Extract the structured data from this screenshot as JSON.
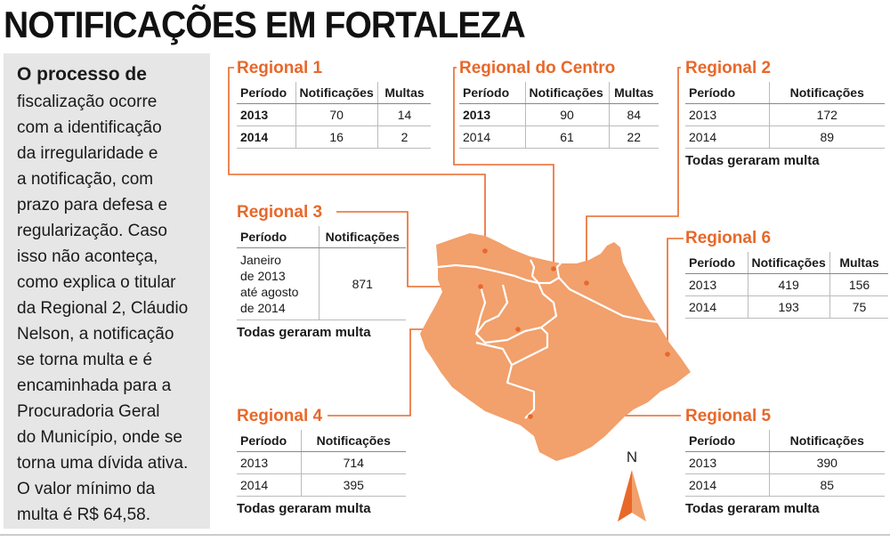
{
  "title": "NOTIFICAÇÕES EM FORTALEZA",
  "sidebar": {
    "lead": "O processo de",
    "body": "fiscalização ocorre\ncom a identificação\nda irregularidade e\na notificação, com\nprazo para defesa e\nregularização. Caso\nisso não aconteça,\ncomo explica o titular\nda Regional 2, Cláudio\nNelson, a notificação\nse torna multa e é\nencaminhada para a\nProcuradoria Geral\ndo Município, onde se\ntorna uma dívida ativa.\nO valor mínimo da\nmulta é R$ 64,58."
  },
  "headers": {
    "periodo": "Período",
    "notificacoes": "Notificações",
    "multas": "Multas"
  },
  "regional1": {
    "title": "Regional 1",
    "rows": [
      {
        "periodo": "2013",
        "notificacoes": "70",
        "multas": "14"
      },
      {
        "periodo": "2014",
        "notificacoes": "16",
        "multas": "2"
      }
    ]
  },
  "regional_centro": {
    "title": "Regional do Centro",
    "rows": [
      {
        "periodo": "2013",
        "notificacoes": "90",
        "multas": "84"
      },
      {
        "periodo": "2014",
        "notificacoes": "61",
        "multas": "22"
      }
    ]
  },
  "regional2": {
    "title": "Regional 2",
    "rows": [
      {
        "periodo": "2013",
        "notificacoes": "172"
      },
      {
        "periodo": "2014",
        "notificacoes": "89"
      }
    ],
    "note": "Todas geraram multa"
  },
  "regional3": {
    "title": "Regional 3",
    "periodo": "Janeiro\nde 2013\naté agosto\nde 2014",
    "notificacoes": "871",
    "note": "Todas geraram multa"
  },
  "regional6": {
    "title": "Regional 6",
    "rows": [
      {
        "periodo": "2013",
        "notificacoes": "419",
        "multas": "156"
      },
      {
        "periodo": "2014",
        "notificacoes": "193",
        "multas": "75"
      }
    ]
  },
  "regional4": {
    "title": "Regional 4",
    "rows": [
      {
        "periodo": "2013",
        "notificacoes": "714"
      },
      {
        "periodo": "2014",
        "notificacoes": "395"
      }
    ],
    "note": "Todas geraram multa"
  },
  "regional5": {
    "title": "Regional 5",
    "rows": [
      {
        "periodo": "2013",
        "notificacoes": "390"
      },
      {
        "periodo": "2014",
        "notificacoes": "85"
      }
    ],
    "note": "Todas geraram multa"
  },
  "compass": {
    "label": "N",
    "icon": "north-arrow-icon"
  },
  "colors": {
    "accent": "#e8682a",
    "map_fill": "#f2a06c",
    "map_border": "#ffffff",
    "sidebar_bg": "#e6e6e6"
  }
}
